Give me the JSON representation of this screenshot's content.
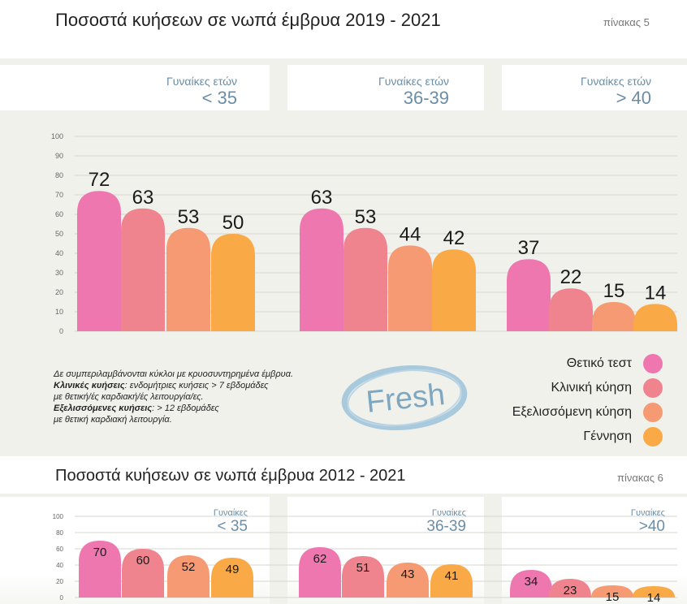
{
  "colors": {
    "positive_test": "#ee77b0",
    "clinical_pregnancy": "#f0848e",
    "ongoing_pregnancy": "#f59a72",
    "birth": "#f9a945",
    "header_text": "#6b8da6",
    "panel_bg": "#f1f1ec"
  },
  "table5": {
    "title": "Ποσοστά κυήσεων σε νωπά έμβρυα 2019 - 2021",
    "label": "πίνακας 5",
    "groups": [
      {
        "line1": "Γυναίκες ετών",
        "line2": "< 35"
      },
      {
        "line1": "Γυναίκες ετών",
        "line2": "36-39"
      },
      {
        "line1": "Γυναίκες ετών",
        "line2": "> 40"
      }
    ],
    "notes": {
      "line1": "Δε συμπεριλαμβάνονται κύκλοι με κρυοσυντηρημένα έμβρυα.",
      "clinical_term": "Κλινικές κυήσεις",
      "clinical_def": ": ενδομήτριες κυήσεις > 7 εβδομάδες",
      "clinical_def2": "με θετική/ές καρδιακή/ές λειτουργία/ες.",
      "ongoing_term": "Εξελισσόμενες κυήσεις",
      "ongoing_def": ": > 12 εβδομάδες",
      "ongoing_def2": "με θετική καρδιακή λειτουργία."
    },
    "stamp": "Fresh",
    "legend": [
      {
        "label": "Θετικό τεστ",
        "color": "#ee77b0"
      },
      {
        "label": "Κλινική κύηση",
        "color": "#f0848e"
      },
      {
        "label": "Εξελισσόμενη κύηση",
        "color": "#f59a72"
      },
      {
        "label": "Γέννηση",
        "color": "#f9a945"
      }
    ]
  },
  "table6": {
    "title": "Ποσοστά κυήσεων σε νωπά έμβρυα 2012 - 2021",
    "label": "πίνακας 6",
    "groups": [
      {
        "line1": "Γυναίκες",
        "line2": "< 35"
      },
      {
        "line1": "Γυναίκες",
        "line2": "36-39"
      },
      {
        "line1": "Γυναίκες",
        "line2": ">40"
      }
    ]
  },
  "chart_data": [
    {
      "type": "bar",
      "title": "Ποσοστά κυήσεων σε νωπά έμβρυα 2019 - 2021",
      "categories": [
        "< 35",
        "36-39",
        "> 40"
      ],
      "series": [
        {
          "name": "Θετικό τεστ",
          "values": [
            72,
            63,
            37
          ]
        },
        {
          "name": "Κλινική κύηση",
          "values": [
            63,
            53,
            22
          ]
        },
        {
          "name": "Εξελισσόμενη κύηση",
          "values": [
            53,
            44,
            15
          ]
        },
        {
          "name": "Γέννηση",
          "values": [
            50,
            42,
            14
          ]
        }
      ],
      "ylim": [
        0,
        100
      ],
      "yticks": [
        "100",
        "90",
        "80",
        "70",
        "60",
        "50",
        "40",
        "30",
        "20",
        "10",
        "0"
      ],
      "grid": true,
      "legend": "bottom-right"
    },
    {
      "type": "bar",
      "title": "Ποσοστά κυήσεων σε νωπά έμβρυα 2012 - 2021",
      "categories": [
        "< 35",
        "36-39",
        ">40"
      ],
      "series": [
        {
          "name": "Θετικό τεστ",
          "values": [
            70,
            62,
            34
          ]
        },
        {
          "name": "Κλινική κύηση",
          "values": [
            60,
            51,
            23
          ]
        },
        {
          "name": "Εξελισσόμενη κύηση",
          "values": [
            52,
            43,
            15
          ]
        },
        {
          "name": "Γέννηση",
          "values": [
            49,
            41,
            14
          ]
        }
      ],
      "ylim": [
        0,
        100
      ],
      "yticks": [
        "100",
        "80",
        "60",
        "40",
        "20",
        "0"
      ],
      "grid": true
    }
  ]
}
